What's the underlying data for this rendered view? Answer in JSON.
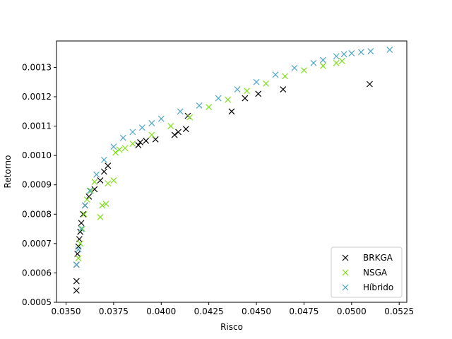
{
  "chart_data": {
    "type": "scatter",
    "xlabel": "Risco",
    "ylabel": "Retorno",
    "xlim": [
      0.0345,
      0.0529
    ],
    "ylim": [
      0.0005,
      0.00139
    ],
    "x_ticks": [
      0.035,
      0.0375,
      0.04,
      0.0425,
      0.045,
      0.0475,
      0.05,
      0.0525
    ],
    "x_tick_labels": [
      "0.0350",
      "0.0375",
      "0.0400",
      "0.0425",
      "0.0450",
      "0.0475",
      "0.0500",
      "0.0525"
    ],
    "y_ticks": [
      0.0005,
      0.0006,
      0.0007,
      0.0008,
      0.0009,
      0.001,
      0.0011,
      0.0012,
      0.0013
    ],
    "y_tick_labels": [
      "0.0005",
      "0.0006",
      "0.0007",
      "0.0008",
      "0.0009",
      "0.0010",
      "0.0011",
      "0.0012",
      "0.0013"
    ],
    "grid": false,
    "legend_position": "lower-right",
    "marker": "x",
    "series": [
      {
        "name": "BRKGA",
        "color": "#000000",
        "points": [
          [
            0.03555,
            0.00054
          ],
          [
            0.03555,
            0.000572
          ],
          [
            0.03555,
            0.000628
          ],
          [
            0.0356,
            0.000665
          ],
          [
            0.03565,
            0.00069
          ],
          [
            0.0357,
            0.000715
          ],
          [
            0.03575,
            0.00074
          ],
          [
            0.0358,
            0.00077
          ],
          [
            0.0359,
            0.0008
          ],
          [
            0.036,
            0.00083
          ],
          [
            0.0362,
            0.00086
          ],
          [
            0.0365,
            0.000885
          ],
          [
            0.0368,
            0.000915
          ],
          [
            0.037,
            0.000945
          ],
          [
            0.0372,
            0.000965
          ],
          [
            0.0388,
            0.001035
          ],
          [
            0.0389,
            0.001045
          ],
          [
            0.0392,
            0.00105
          ],
          [
            0.0397,
            0.001055
          ],
          [
            0.0407,
            0.00107
          ],
          [
            0.0409,
            0.00108
          ],
          [
            0.0413,
            0.00109
          ],
          [
            0.0414,
            0.001135
          ],
          [
            0.0437,
            0.00115
          ],
          [
            0.0444,
            0.001195
          ],
          [
            0.0451,
            0.00121
          ],
          [
            0.0464,
            0.001225
          ],
          [
            0.05095,
            0.001243
          ]
        ]
      },
      {
        "name": "NSGA",
        "color": "#7fe01a",
        "points": [
          [
            0.03565,
            0.00065
          ],
          [
            0.03575,
            0.0007
          ],
          [
            0.03585,
            0.00075
          ],
          [
            0.03595,
            0.0008
          ],
          [
            0.0361,
            0.00085
          ],
          [
            0.0363,
            0.00088
          ],
          [
            0.0365,
            0.00091
          ],
          [
            0.0368,
            0.00079
          ],
          [
            0.0369,
            0.00083
          ],
          [
            0.0371,
            0.000835
          ],
          [
            0.0372,
            0.000905
          ],
          [
            0.0375,
            0.000915
          ],
          [
            0.0376,
            0.00101
          ],
          [
            0.0378,
            0.00102
          ],
          [
            0.0381,
            0.001025
          ],
          [
            0.0385,
            0.00104
          ],
          [
            0.0395,
            0.00107
          ],
          [
            0.0405,
            0.0011
          ],
          [
            0.0415,
            0.00113
          ],
          [
            0.0425,
            0.001165
          ],
          [
            0.0435,
            0.00119
          ],
          [
            0.0445,
            0.00122
          ],
          [
            0.0455,
            0.001245
          ],
          [
            0.0465,
            0.00127
          ],
          [
            0.0475,
            0.00129
          ],
          [
            0.0485,
            0.001305
          ],
          [
            0.0492,
            0.001315
          ],
          [
            0.0495,
            0.001322
          ]
        ]
      },
      {
        "name": "Híbrido",
        "color": "#4ea5c5",
        "points": [
          [
            0.03555,
            0.000628
          ],
          [
            0.03565,
            0.00068
          ],
          [
            0.0358,
            0.00075
          ],
          [
            0.036,
            0.00083
          ],
          [
            0.03625,
            0.00088
          ],
          [
            0.0366,
            0.000935
          ],
          [
            0.037,
            0.000985
          ],
          [
            0.0375,
            0.00103
          ],
          [
            0.038,
            0.00106
          ],
          [
            0.0385,
            0.00108
          ],
          [
            0.039,
            0.001095
          ],
          [
            0.0395,
            0.00111
          ],
          [
            0.04,
            0.001125
          ],
          [
            0.041,
            0.00115
          ],
          [
            0.042,
            0.00117
          ],
          [
            0.043,
            0.001195
          ],
          [
            0.044,
            0.001225
          ],
          [
            0.045,
            0.00125
          ],
          [
            0.046,
            0.001275
          ],
          [
            0.047,
            0.001298
          ],
          [
            0.048,
            0.001315
          ],
          [
            0.0485,
            0.001325
          ],
          [
            0.0492,
            0.001338
          ],
          [
            0.0496,
            0.001345
          ],
          [
            0.05,
            0.001348
          ],
          [
            0.0505,
            0.001352
          ],
          [
            0.051,
            0.001355
          ],
          [
            0.052,
            0.00136
          ]
        ]
      }
    ]
  }
}
